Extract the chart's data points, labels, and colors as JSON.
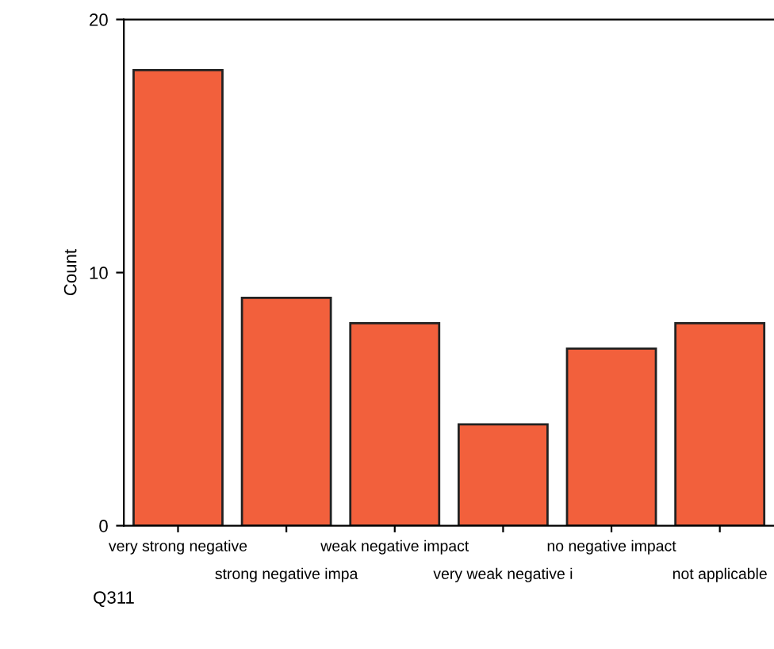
{
  "chart_data": {
    "type": "bar",
    "xlabel": "Q311",
    "ylabel": "Count",
    "categories": [
      "very strong negative",
      "strong negative impa",
      "weak negative impact",
      "very weak negative i",
      "no negative impact",
      "not applicable"
    ],
    "values": [
      18,
      9,
      8,
      4,
      7,
      8
    ],
    "color": "#f2603c",
    "ylim": [
      0,
      20
    ],
    "yticks": [
      0,
      10,
      20
    ],
    "grid": false
  }
}
